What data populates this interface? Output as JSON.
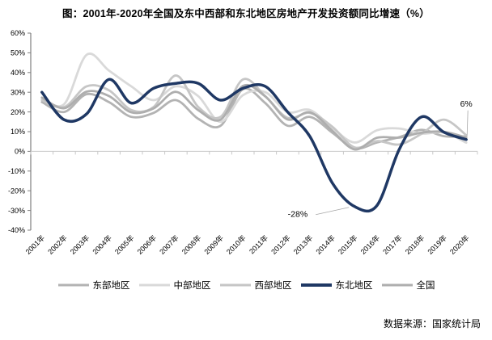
{
  "title": "图：2001年-2020年全国及东中西部和东北地区房地产开发投资额同比增速（%）",
  "source": "数据来源：国家统计局",
  "colors": {
    "east": "#b3b3b3",
    "central": "#d9d9d9",
    "west": "#c6c6c6",
    "northeast": "#1f3864",
    "national": "#aeaeae",
    "y_axis": "#7f7f7f",
    "zero_axis": "#c9c9c9",
    "leader_line": "#a6a6a6",
    "text": "#000000"
  },
  "chart_data": {
    "type": "line",
    "title": "图：2001年-2020年全国及东中西部和东北地区房地产开发投资额同比增速（%）",
    "categories": [
      "2001年",
      "2002年",
      "2003年",
      "2004年",
      "2005年",
      "2006年",
      "2007年",
      "2008年",
      "2009年",
      "2010年",
      "2011年",
      "2012年",
      "2013年",
      "2014年",
      "2015年",
      "2016年",
      "2017年",
      "2018年",
      "2019年",
      "2020年"
    ],
    "series": [
      {
        "name": "东部地区",
        "color_key": "east",
        "emphasis": false,
        "values": [
          25,
          20,
          29,
          25,
          17.5,
          19.5,
          26,
          16.5,
          13,
          31.5,
          24.5,
          13,
          17.5,
          9.5,
          1.5,
          4.5,
          7.2,
          10.9,
          7.7,
          7.6
        ]
      },
      {
        "name": "中部地区",
        "color_key": "central",
        "emphasis": false,
        "values": [
          27,
          24,
          49,
          41,
          33,
          26,
          33,
          28,
          15,
          28.5,
          30,
          20,
          21,
          12,
          4.5,
          10.7,
          11.6,
          9,
          9.6,
          4.4
        ]
      },
      {
        "name": "西部地区",
        "color_key": "west",
        "emphasis": false,
        "values": [
          26,
          22.5,
          33,
          31,
          21,
          22.5,
          38.5,
          22.5,
          17.5,
          36.5,
          28,
          17,
          19.5,
          12.5,
          2,
          5.2,
          3.5,
          8.9,
          16.1,
          8.2
        ]
      },
      {
        "name": "东北地区",
        "color_key": "northeast",
        "emphasis": true,
        "values": [
          30,
          16,
          19,
          36.5,
          24.5,
          32,
          34.5,
          34.5,
          26,
          32,
          33,
          20,
          7.5,
          -16,
          -28,
          -27.5,
          1,
          17.5,
          9.7,
          6
        ]
      },
      {
        "name": "全国",
        "color_key": "national",
        "emphasis": false,
        "values": [
          27.3,
          21.9,
          30.3,
          28.1,
          19.8,
          21.8,
          30.2,
          20.9,
          16.1,
          33.2,
          27.9,
          16.2,
          19.8,
          10.5,
          1,
          6.9,
          7,
          9.5,
          9.9,
          7
        ]
      }
    ],
    "ylim": [
      -40,
      60
    ],
    "ytick_step": 10,
    "ytick_labels": [
      "60%",
      "50%",
      "40%",
      "30%",
      "20%",
      "10%",
      "0%",
      "-10%",
      "-20%",
      "-30%",
      "-40%"
    ],
    "grid": "zero-line-only",
    "legend_position": "bottom",
    "annotations": [
      {
        "text": "-28%",
        "series": "东北地区",
        "category": "2015年"
      },
      {
        "text": "6%",
        "series": "东北地区",
        "category": "2020年"
      }
    ]
  }
}
